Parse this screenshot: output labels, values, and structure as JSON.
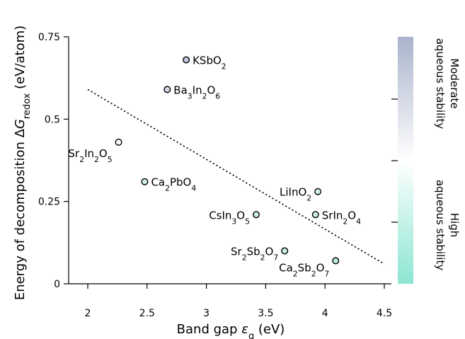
{
  "chart_data": {
    "type": "scatter",
    "xlabel": "Band gap εg (eV)",
    "xlabel_parts": [
      "Band gap ",
      "ε",
      "g",
      " (eV)"
    ],
    "ylabel": "Energy of decomposition ΔGredox (eV/atom)",
    "ylabel_parts": [
      "Energy of decomposition Δ",
      "G",
      "redox",
      " (eV/atom)"
    ],
    "xlim": [
      1.9,
      4.5
    ],
    "ylim": [
      0,
      0.75
    ],
    "xticks": [
      2,
      2.5,
      3,
      3.5,
      4,
      4.5
    ],
    "xtick_labels": [
      "2",
      "2.5",
      "3",
      "3.5",
      "4",
      "4.5"
    ],
    "yticks": [
      0,
      0.25,
      0.5,
      0.75
    ],
    "ytick_labels": [
      "0",
      "0.25",
      "0.5",
      "0.75"
    ],
    "points": [
      {
        "label": "KSbO2",
        "parts": [
          [
            "KSbO",
            ""
          ],
          [
            "2",
            "sub"
          ]
        ],
        "x": 2.83,
        "y": 0.68,
        "color": "#c3c7dc",
        "anchor": "start"
      },
      {
        "label": "Ba3In2O6",
        "parts": [
          [
            "Ba",
            ""
          ],
          [
            "3",
            "sub"
          ],
          [
            "In",
            ""
          ],
          [
            "2",
            "sub"
          ],
          [
            "O",
            ""
          ],
          [
            "6",
            "sub"
          ]
        ],
        "x": 2.67,
        "y": 0.59,
        "color": "#d4d9e6",
        "anchor": "start"
      },
      {
        "label": "Sr2In2O5",
        "parts": [
          [
            "Sr",
            ""
          ],
          [
            "2",
            "sub"
          ],
          [
            "In",
            ""
          ],
          [
            "2",
            "sub"
          ],
          [
            "O",
            ""
          ],
          [
            "5",
            "sub"
          ]
        ],
        "x": 2.26,
        "y": 0.43,
        "color": "#ffffff",
        "anchor": "end"
      },
      {
        "label": "Ca2PbO4",
        "parts": [
          [
            "Ca",
            ""
          ],
          [
            "2",
            "sub"
          ],
          [
            "PbO",
            ""
          ],
          [
            "4",
            "sub"
          ]
        ],
        "x": 2.48,
        "y": 0.31,
        "color": "#d3f2ea",
        "anchor": "start"
      },
      {
        "label": "LiInO2",
        "parts": [
          [
            "LiInO",
            ""
          ],
          [
            "2",
            "sub"
          ]
        ],
        "x": 3.94,
        "y": 0.28,
        "color": "#d3f2ea",
        "anchor": "end"
      },
      {
        "label": "CsIn3O5",
        "parts": [
          [
            "CsIn",
            ""
          ],
          [
            "3",
            "sub"
          ],
          [
            "O",
            ""
          ],
          [
            "5",
            "sub"
          ]
        ],
        "x": 3.42,
        "y": 0.21,
        "color": "#c8f0e4",
        "anchor": "end"
      },
      {
        "label": "SrIn2O4",
        "parts": [
          [
            "SrIn",
            ""
          ],
          [
            "2",
            "sub"
          ],
          [
            "O",
            ""
          ],
          [
            "4",
            "sub"
          ]
        ],
        "x": 3.92,
        "y": 0.21,
        "color": "#c8f0e4",
        "anchor": "start"
      },
      {
        "label": "Sr2Sb2O7",
        "parts": [
          [
            "Sr",
            ""
          ],
          [
            "2",
            "sub"
          ],
          [
            "Sb",
            ""
          ],
          [
            "2",
            "sub"
          ],
          [
            "O",
            ""
          ],
          [
            "7",
            "sub"
          ]
        ],
        "x": 3.66,
        "y": 0.1,
        "color": "#c4efe2",
        "anchor": "end"
      },
      {
        "label": "Ca2Sb2O7",
        "parts": [
          [
            "Ca",
            ""
          ],
          [
            "2",
            "sub"
          ],
          [
            "Sb",
            ""
          ],
          [
            "2",
            "sub"
          ],
          [
            "O",
            ""
          ],
          [
            "7",
            "sub"
          ]
        ],
        "x": 4.09,
        "y": 0.07,
        "color": "#bdede0",
        "anchor": "end"
      }
    ],
    "trend_line": {
      "x": [
        2,
        4.5
      ],
      "y": [
        0.59,
        0.06
      ],
      "style": "dotted"
    },
    "colorbar": {
      "top_color": "#a9b3cb",
      "mid_color": "#ffffff",
      "bottom_color": "#8ce5d2",
      "label_top": [
        "Moderate",
        "aqueous stability"
      ],
      "label_bottom": [
        "High",
        "aqueous stability"
      ]
    },
    "grid": false,
    "legend": "none"
  }
}
